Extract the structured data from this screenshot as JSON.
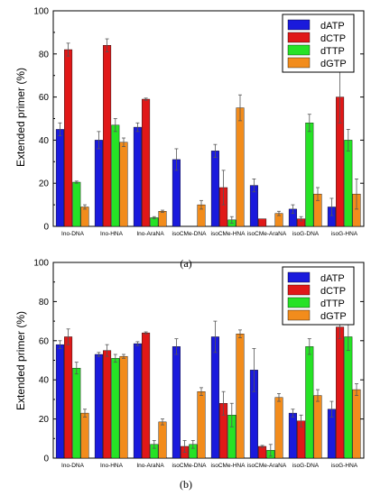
{
  "colors": {
    "dATP": "#1a1adc",
    "dCTP": "#e01818",
    "dTTP": "#26e226",
    "dGTP": "#f28c1c"
  },
  "chart_data": [
    {
      "type": "bar",
      "panel_label": "(a)",
      "ylabel": "Extended primer (%)",
      "ylim": [
        0,
        100
      ],
      "yticks": [
        0,
        20,
        40,
        60,
        80,
        100
      ],
      "legend": "top-right",
      "categories": [
        "Ino-DNA",
        "Ino-HNA",
        "Ino-AraNA",
        "isoCMe-DNA",
        "isoCMe-HNA",
        "isoCMe-AraNA",
        "isoG-DNA",
        "isoG-HNA"
      ],
      "series": [
        {
          "name": "dATP",
          "values": [
            45,
            40,
            46,
            31,
            35,
            19,
            8,
            9
          ],
          "errors": [
            3,
            4,
            2,
            5,
            3,
            3,
            2,
            4
          ]
        },
        {
          "name": "dCTP",
          "values": [
            82,
            84,
            59,
            0,
            18,
            3.5,
            3.5,
            60
          ],
          "errors": [
            3,
            3,
            0.5,
            0,
            8,
            0,
            1,
            12
          ]
        },
        {
          "name": "dTTP",
          "values": [
            20.5,
            47,
            4,
            0,
            3,
            0,
            48,
            40
          ],
          "errors": [
            0.5,
            3,
            0.5,
            0,
            1.5,
            0,
            4,
            5
          ]
        },
        {
          "name": "dGTP",
          "values": [
            9,
            39,
            7,
            10,
            55,
            6,
            15,
            15
          ],
          "errors": [
            1,
            2,
            0.5,
            2,
            6,
            1,
            3,
            7
          ]
        }
      ]
    },
    {
      "type": "bar",
      "panel_label": "(b)",
      "ylabel": "Extended primer (%)",
      "ylim": [
        0,
        100
      ],
      "yticks": [
        0,
        20,
        40,
        60,
        80,
        100
      ],
      "legend": "top-right",
      "categories": [
        "Ino-DNA",
        "Ino-HNA",
        "Ino-AraNA",
        "isoCMe-DNA",
        "isoCMe-HNA",
        "isoCMe-AraNA",
        "isoG-DNA",
        "isoG-HNA"
      ],
      "series": [
        {
          "name": "dATP",
          "values": [
            58,
            53,
            58.5,
            57,
            62,
            45,
            23,
            25
          ],
          "errors": [
            2,
            1,
            1,
            4,
            8,
            11,
            2,
            4
          ]
        },
        {
          "name": "dCTP",
          "values": [
            62,
            55,
            64,
            6,
            28,
            6,
            19,
            67
          ],
          "errors": [
            4,
            3,
            0.5,
            3,
            6,
            0.5,
            3,
            6
          ]
        },
        {
          "name": "dTTP",
          "values": [
            46,
            51,
            7,
            7,
            22,
            4,
            57,
            62
          ],
          "errors": [
            3,
            2,
            2,
            2,
            6,
            3,
            4,
            7
          ]
        },
        {
          "name": "dGTP",
          "values": [
            23,
            52,
            18.5,
            34,
            63.5,
            31,
            32,
            35
          ],
          "errors": [
            2,
            1,
            1.5,
            2,
            2,
            2,
            3,
            3
          ]
        }
      ]
    }
  ]
}
